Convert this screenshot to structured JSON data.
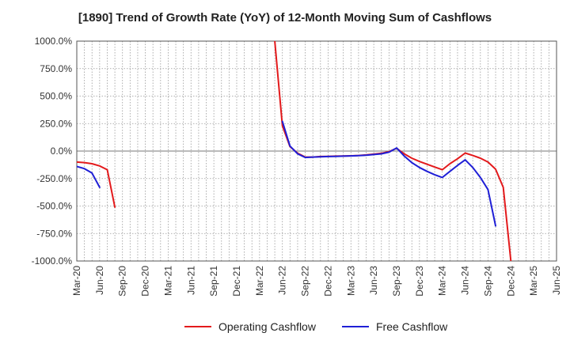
{
  "chart_data": {
    "type": "line",
    "title": "[1890]  Trend of Growth Rate (YoY) of 12-Month Moving Sum of Cashflows",
    "xlabel": "",
    "ylabel": "",
    "ylim": [
      -1000,
      1000
    ],
    "yticks": [
      1000,
      750,
      500,
      250,
      0,
      -250,
      -500,
      -750,
      -1000
    ],
    "ytick_labels": [
      "1000.0%",
      "750.0%",
      "500.0%",
      "250.0%",
      "0.0%",
      "-250.0%",
      "-500.0%",
      "-750.0%",
      "-1000.0%"
    ],
    "x_months": [
      "2020-03",
      "2020-04",
      "2020-05",
      "2020-06",
      "2020-07",
      "2020-08",
      "2020-09",
      "2020-10",
      "2020-11",
      "2020-12",
      "2021-01",
      "2021-02",
      "2021-03",
      "2021-04",
      "2021-05",
      "2021-06",
      "2021-07",
      "2021-08",
      "2021-09",
      "2021-10",
      "2021-11",
      "2021-12",
      "2022-01",
      "2022-02",
      "2022-03",
      "2022-04",
      "2022-05",
      "2022-06",
      "2022-07",
      "2022-08",
      "2022-09",
      "2022-10",
      "2022-11",
      "2022-12",
      "2023-01",
      "2023-02",
      "2023-03",
      "2023-04",
      "2023-05",
      "2023-06",
      "2023-07",
      "2023-08",
      "2023-09",
      "2023-10",
      "2023-11",
      "2023-12",
      "2024-01",
      "2024-02",
      "2024-03",
      "2024-04",
      "2024-05",
      "2024-06",
      "2024-07",
      "2024-08",
      "2024-09",
      "2024-10",
      "2024-11",
      "2024-12",
      "2025-01",
      "2025-02",
      "2025-03",
      "2025-04",
      "2025-05",
      "2025-06"
    ],
    "xtick_labels": [
      "Mar-20",
      "Jun-20",
      "Sep-20",
      "Dec-20",
      "Mar-21",
      "Jun-21",
      "Sep-21",
      "Dec-21",
      "Mar-22",
      "Jun-22",
      "Sep-22",
      "Dec-22",
      "Mar-23",
      "Jun-23",
      "Sep-23",
      "Dec-23",
      "Mar-24",
      "Jun-24",
      "Sep-24",
      "Dec-24",
      "Mar-25",
      "Jun-25"
    ],
    "grid": true,
    "legend_position": "bottom",
    "series": [
      {
        "name": "Operating Cashflow",
        "color": "#e31a1c",
        "segments": [
          [
            [
              "2020-03",
              -100
            ],
            [
              "2020-04",
              -105
            ],
            [
              "2020-05",
              -115
            ],
            [
              "2020-06",
              -135
            ],
            [
              "2020-07",
              -170
            ],
            [
              "2020-08",
              -510
            ]
          ],
          [
            [
              "2022-05",
              1000
            ],
            [
              "2022-06",
              230
            ],
            [
              "2022-07",
              40
            ],
            [
              "2022-08",
              -20
            ],
            [
              "2022-09",
              -55
            ],
            [
              "2022-10",
              -55
            ],
            [
              "2022-11",
              -50
            ],
            [
              "2022-12",
              -48
            ],
            [
              "2023-01",
              -46
            ],
            [
              "2023-02",
              -45
            ],
            [
              "2023-03",
              -43
            ],
            [
              "2023-04",
              -40
            ],
            [
              "2023-05",
              -35
            ],
            [
              "2023-06",
              -28
            ],
            [
              "2023-07",
              -20
            ],
            [
              "2023-08",
              -5
            ],
            [
              "2023-09",
              25
            ],
            [
              "2023-10",
              -25
            ],
            [
              "2023-11",
              -65
            ],
            [
              "2023-12",
              -95
            ],
            [
              "2024-01",
              -120
            ],
            [
              "2024-02",
              -145
            ],
            [
              "2024-03",
              -170
            ],
            [
              "2024-04",
              -115
            ],
            [
              "2024-05",
              -70
            ],
            [
              "2024-06",
              -18
            ],
            [
              "2024-07",
              -40
            ],
            [
              "2024-08",
              -65
            ],
            [
              "2024-09",
              -100
            ],
            [
              "2024-10",
              -165
            ],
            [
              "2024-11",
              -330
            ],
            [
              "2024-12",
              -1000
            ]
          ]
        ]
      },
      {
        "name": "Free Cashflow",
        "color": "#1f1fd6",
        "segments": [
          [
            [
              "2020-03",
              -140
            ],
            [
              "2020-04",
              -160
            ],
            [
              "2020-05",
              -200
            ],
            [
              "2020-06",
              -330
            ]
          ],
          [
            [
              "2022-06",
              270
            ],
            [
              "2022-07",
              45
            ],
            [
              "2022-08",
              -25
            ],
            [
              "2022-09",
              -58
            ],
            [
              "2022-10",
              -55
            ],
            [
              "2022-11",
              -52
            ],
            [
              "2022-12",
              -50
            ],
            [
              "2023-01",
              -48
            ],
            [
              "2023-02",
              -46
            ],
            [
              "2023-03",
              -44
            ],
            [
              "2023-04",
              -42
            ],
            [
              "2023-05",
              -38
            ],
            [
              "2023-06",
              -32
            ],
            [
              "2023-07",
              -25
            ],
            [
              "2023-08",
              -10
            ],
            [
              "2023-09",
              28
            ],
            [
              "2023-10",
              -45
            ],
            [
              "2023-11",
              -105
            ],
            [
              "2023-12",
              -150
            ],
            [
              "2024-01",
              -185
            ],
            [
              "2024-02",
              -215
            ],
            [
              "2024-03",
              -240
            ],
            [
              "2024-04",
              -185
            ],
            [
              "2024-05",
              -130
            ],
            [
              "2024-06",
              -80
            ],
            [
              "2024-07",
              -150
            ],
            [
              "2024-08",
              -240
            ],
            [
              "2024-09",
              -350
            ],
            [
              "2024-10",
              -680
            ]
          ]
        ]
      }
    ]
  }
}
